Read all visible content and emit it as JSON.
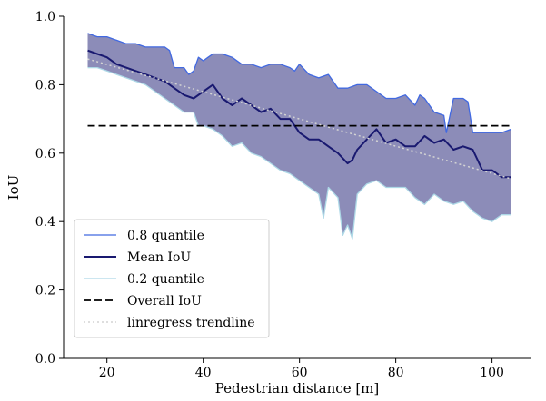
{
  "chart_data": {
    "type": "line",
    "title": "",
    "xlabel": "Pedestrian distance [m]",
    "ylabel": "IoU",
    "xlim": [
      11,
      108
    ],
    "ylim": [
      0.0,
      1.0
    ],
    "xticks": [
      20,
      40,
      60,
      80,
      100
    ],
    "yticks": [
      0.0,
      0.2,
      0.4,
      0.6,
      0.8,
      1.0
    ],
    "grid": false,
    "legend_position": "bottom-left",
    "series": [
      {
        "name": "0.8 quantile",
        "style": "solid",
        "color": "#4169e1",
        "x": [
          16,
          18,
          20,
          22,
          24,
          26,
          28,
          30,
          32,
          33,
          34,
          36,
          37,
          38,
          39,
          40,
          41,
          42,
          44,
          46,
          48,
          50,
          52,
          54,
          56,
          58,
          59,
          60,
          62,
          64,
          66,
          68,
          70,
          72,
          74,
          76,
          78,
          80,
          82,
          84,
          85,
          86,
          88,
          90,
          90.5,
          92,
          94,
          95,
          96,
          98,
          100,
          102,
          104
        ],
        "values": [
          0.95,
          0.94,
          0.94,
          0.93,
          0.92,
          0.92,
          0.91,
          0.91,
          0.91,
          0.9,
          0.85,
          0.85,
          0.83,
          0.84,
          0.88,
          0.87,
          0.88,
          0.89,
          0.89,
          0.88,
          0.86,
          0.86,
          0.85,
          0.86,
          0.86,
          0.85,
          0.84,
          0.86,
          0.83,
          0.82,
          0.83,
          0.79,
          0.79,
          0.8,
          0.8,
          0.78,
          0.76,
          0.76,
          0.77,
          0.74,
          0.77,
          0.76,
          0.72,
          0.71,
          0.66,
          0.76,
          0.76,
          0.75,
          0.66,
          0.66,
          0.66,
          0.66,
          0.67
        ]
      },
      {
        "name": "Mean IoU",
        "style": "solid",
        "color": "#191970",
        "x": [
          16,
          18,
          20,
          22,
          24,
          26,
          28,
          30,
          32,
          34,
          36,
          38,
          40,
          42,
          44,
          46,
          48,
          50,
          52,
          54,
          56,
          58,
          60,
          62,
          64,
          66,
          68,
          70,
          71,
          72,
          74,
          76,
          78,
          80,
          82,
          84,
          86,
          88,
          90,
          92,
          94,
          96,
          98,
          100,
          102,
          104
        ],
        "values": [
          0.9,
          0.89,
          0.88,
          0.86,
          0.85,
          0.84,
          0.83,
          0.82,
          0.81,
          0.79,
          0.77,
          0.76,
          0.78,
          0.8,
          0.76,
          0.74,
          0.76,
          0.74,
          0.72,
          0.73,
          0.7,
          0.7,
          0.66,
          0.64,
          0.64,
          0.62,
          0.6,
          0.57,
          0.58,
          0.61,
          0.64,
          0.67,
          0.63,
          0.64,
          0.62,
          0.62,
          0.65,
          0.63,
          0.64,
          0.61,
          0.62,
          0.61,
          0.55,
          0.55,
          0.53,
          0.53
        ]
      },
      {
        "name": "0.2 quantile",
        "style": "solid",
        "color": "#add8e6",
        "x": [
          16,
          18,
          20,
          22,
          24,
          26,
          28,
          30,
          32,
          34,
          36,
          38,
          39,
          40,
          42,
          44,
          46,
          48,
          50,
          52,
          54,
          56,
          58,
          60,
          62,
          64,
          65,
          66,
          68,
          69,
          70,
          71,
          72,
          74,
          76,
          78,
          80,
          82,
          84,
          86,
          88,
          90,
          92,
          94,
          96,
          98,
          100,
          102,
          104
        ],
        "values": [
          0.85,
          0.85,
          0.84,
          0.83,
          0.82,
          0.81,
          0.8,
          0.78,
          0.76,
          0.74,
          0.72,
          0.72,
          0.68,
          0.68,
          0.67,
          0.65,
          0.62,
          0.63,
          0.6,
          0.59,
          0.57,
          0.55,
          0.54,
          0.52,
          0.5,
          0.48,
          0.41,
          0.5,
          0.47,
          0.36,
          0.39,
          0.35,
          0.48,
          0.51,
          0.52,
          0.5,
          0.5,
          0.5,
          0.47,
          0.45,
          0.48,
          0.46,
          0.45,
          0.46,
          0.43,
          0.41,
          0.4,
          0.42,
          0.42
        ]
      },
      {
        "name": "Overall IoU",
        "style": "dashed",
        "color": "#000000",
        "x": [
          16,
          104
        ],
        "values": [
          0.68,
          0.68
        ]
      },
      {
        "name": "linregress trendline",
        "style": "dotted",
        "color": "#d3d3d3",
        "x": [
          16,
          104
        ],
        "values": [
          0.875,
          0.525
        ]
      }
    ],
    "band": {
      "between": [
        "0.8 quantile",
        "0.2 quantile"
      ],
      "color": "#8c8cb8"
    },
    "legend": [
      "0.8 quantile",
      "Mean IoU",
      "0.2 quantile",
      "Overall IoU",
      "linregress trendline"
    ]
  }
}
